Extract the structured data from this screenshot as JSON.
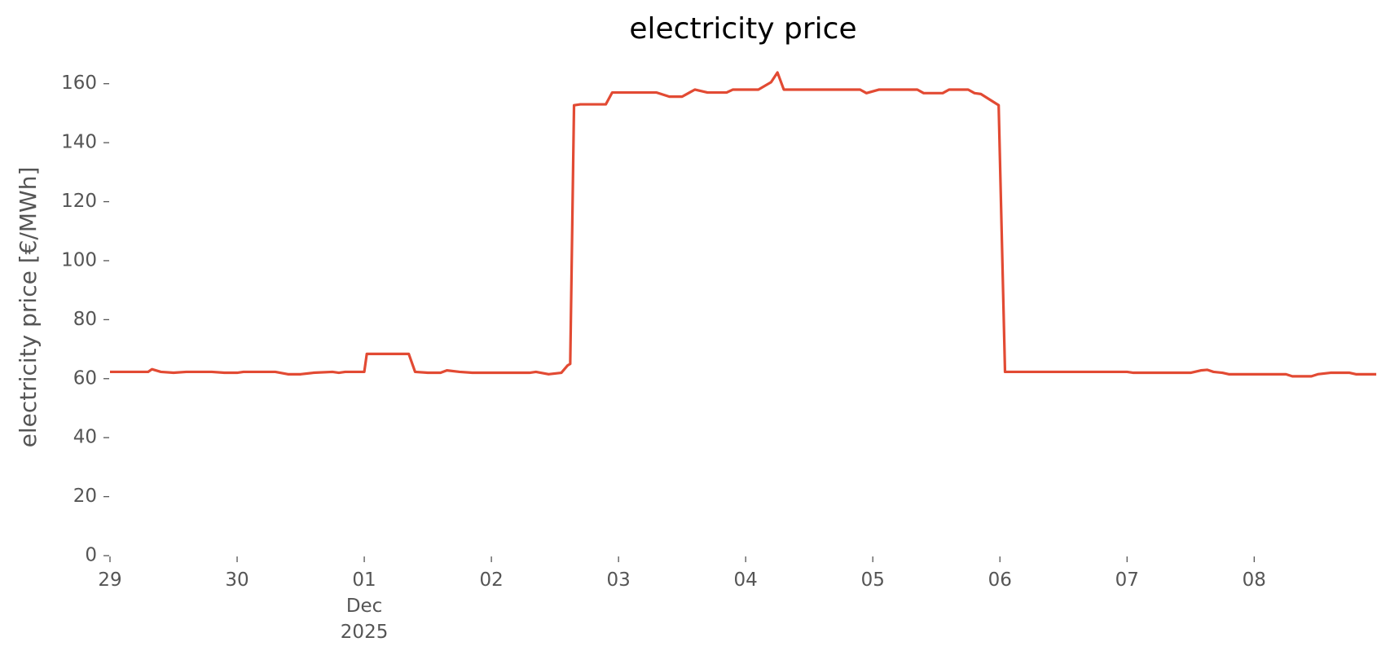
{
  "chart_data": {
    "type": "line",
    "title": "electricity price",
    "ylabel": "electricity price [€/MWh]",
    "x": [
      0,
      0.3,
      0.33,
      0.4,
      0.5,
      0.6,
      0.8,
      0.9,
      1.0,
      1.05,
      1.3,
      1.4,
      1.5,
      1.6,
      1.75,
      1.8,
      1.85,
      2.0,
      2.02,
      2.35,
      2.4,
      2.5,
      2.6,
      2.65,
      2.75,
      2.85,
      3.3,
      3.35,
      3.45,
      3.55,
      3.6,
      3.62,
      3.65,
      3.7,
      3.9,
      3.95,
      4.3,
      4.4,
      4.5,
      4.55,
      4.6,
      4.7,
      4.85,
      4.9,
      5.1,
      5.2,
      5.25,
      5.3,
      5.9,
      5.95,
      6.05,
      6.35,
      6.4,
      6.55,
      6.6,
      6.75,
      6.8,
      6.85,
      6.99,
      7.04,
      8.0,
      8.05,
      8.5,
      8.58,
      8.63,
      8.68,
      8.75,
      8.8,
      9.25,
      9.3,
      9.45,
      9.5,
      9.6,
      9.75,
      9.8,
      9.96
    ],
    "series": [
      {
        "name": "electricity price",
        "color": "#e24a33",
        "values": [
          62.3,
          62.3,
          63.2,
          62.3,
          62,
          62.3,
          62.3,
          62,
          62,
          62.3,
          62.3,
          61.5,
          61.5,
          62,
          62.3,
          62,
          62.3,
          62.3,
          68.4,
          68.4,
          62.3,
          62,
          62,
          62.8,
          62.3,
          62,
          62,
          62.3,
          61.5,
          62,
          64.5,
          65,
          152.7,
          153,
          153,
          157,
          157,
          155.6,
          155.6,
          156.8,
          158,
          157,
          157,
          158,
          158,
          160.5,
          163.8,
          158,
          158,
          156.8,
          158,
          158,
          156.8,
          156.8,
          158,
          158,
          156.8,
          156.5,
          152.7,
          62.3,
          62.3,
          62,
          62,
          62.8,
          63,
          62.3,
          62,
          61.5,
          61.5,
          60.8,
          60.8,
          61.5,
          62,
          62,
          61.5,
          61.5
        ]
      }
    ],
    "xlim": [
      0,
      9.94
    ],
    "xticks": [
      {
        "value": 0,
        "label": "29"
      },
      {
        "value": 1,
        "label": "30"
      },
      {
        "value": 2,
        "label": "01\nDec\n2025"
      },
      {
        "value": 3,
        "label": "02"
      },
      {
        "value": 4,
        "label": "03"
      },
      {
        "value": 5,
        "label": "04"
      },
      {
        "value": 6,
        "label": "05"
      },
      {
        "value": 7,
        "label": "06"
      },
      {
        "value": 8,
        "label": "07"
      },
      {
        "value": 9,
        "label": "08"
      }
    ],
    "ylim": [
      0,
      166
    ],
    "yticks": [
      0,
      20,
      40,
      60,
      80,
      100,
      120,
      140,
      160
    ],
    "grid": false
  }
}
